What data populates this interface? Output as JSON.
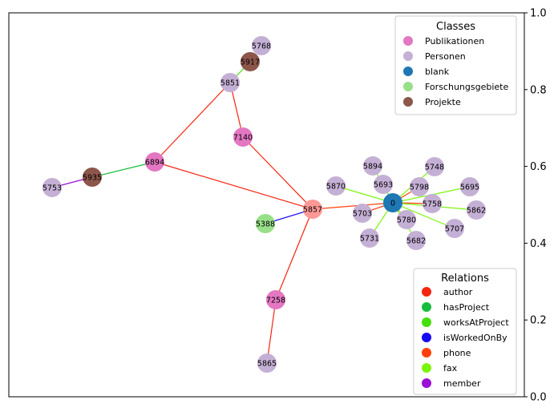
{
  "graph": {
    "nodes": [
      {
        "id": "5768",
        "label": "5768",
        "class": "Personen"
      },
      {
        "id": "5917",
        "label": "5917",
        "class": "Projekte"
      },
      {
        "id": "5851",
        "label": "5851",
        "class": "Personen"
      },
      {
        "id": "7140",
        "label": "7140",
        "class": "Publikationen"
      },
      {
        "id": "6894",
        "label": "6894",
        "class": "Publikationen"
      },
      {
        "id": "5935",
        "label": "5935",
        "class": "Projekte"
      },
      {
        "id": "5753",
        "label": "5753",
        "class": "Personen"
      },
      {
        "id": "5857",
        "label": "5857",
        "class": "hub"
      },
      {
        "id": "5388",
        "label": "5388",
        "class": "Forschungsgebiete"
      },
      {
        "id": "7258",
        "label": "7258",
        "class": "Publikationen"
      },
      {
        "id": "5865",
        "label": "5865",
        "class": "Personen"
      },
      {
        "id": "0",
        "label": "0",
        "class": "blank"
      },
      {
        "id": "5894",
        "label": "5894",
        "class": "Personen"
      },
      {
        "id": "5693",
        "label": "5693",
        "class": "Personen"
      },
      {
        "id": "5870",
        "label": "5870",
        "class": "Personen"
      },
      {
        "id": "5748",
        "label": "5748",
        "class": "Personen"
      },
      {
        "id": "5798",
        "label": "5798",
        "class": "Personen"
      },
      {
        "id": "5695",
        "label": "5695",
        "class": "Personen"
      },
      {
        "id": "5758",
        "label": "5758",
        "class": "Personen"
      },
      {
        "id": "5862",
        "label": "5862",
        "class": "Personen"
      },
      {
        "id": "5703",
        "label": "5703",
        "class": "Personen"
      },
      {
        "id": "5780",
        "label": "5780",
        "class": "Personen"
      },
      {
        "id": "5707",
        "label": "5707",
        "class": "Personen"
      },
      {
        "id": "5731",
        "label": "5731",
        "class": "Personen"
      },
      {
        "id": "5682",
        "label": "5682",
        "class": "Personen"
      }
    ],
    "edges": [
      {
        "from": "5917",
        "to": "5851",
        "relation": "worksAtProject"
      },
      {
        "from": "5851",
        "to": "7140",
        "relation": "author"
      },
      {
        "from": "5851",
        "to": "6894",
        "relation": "author"
      },
      {
        "from": "7140",
        "to": "5857",
        "relation": "author"
      },
      {
        "from": "6894",
        "to": "5857",
        "relation": "author"
      },
      {
        "from": "6894",
        "to": "5935",
        "relation": "hasProject"
      },
      {
        "from": "5935",
        "to": "5753",
        "relation": "member"
      },
      {
        "from": "5388",
        "to": "5857",
        "relation": "isWorkedOnBy"
      },
      {
        "from": "5857",
        "to": "7258",
        "relation": "author"
      },
      {
        "from": "7258",
        "to": "5865",
        "relation": "author"
      },
      {
        "from": "5857",
        "to": "0",
        "relation": "phone"
      },
      {
        "from": "0",
        "to": "5894",
        "relation": "fax"
      },
      {
        "from": "0",
        "to": "5693",
        "relation": "fax"
      },
      {
        "from": "0",
        "to": "5870",
        "relation": "fax"
      },
      {
        "from": "0",
        "to": "5748",
        "relation": "fax"
      },
      {
        "from": "0",
        "to": "5798",
        "relation": "phone"
      },
      {
        "from": "0",
        "to": "5695",
        "relation": "fax"
      },
      {
        "from": "0",
        "to": "5758",
        "relation": "phone"
      },
      {
        "from": "0",
        "to": "5862",
        "relation": "fax"
      },
      {
        "from": "0",
        "to": "5703",
        "relation": "phone"
      },
      {
        "from": "0",
        "to": "5780",
        "relation": "fax"
      },
      {
        "from": "0",
        "to": "5707",
        "relation": "fax"
      },
      {
        "from": "0",
        "to": "5731",
        "relation": "fax"
      },
      {
        "from": "0",
        "to": "5682",
        "relation": "fax"
      }
    ]
  },
  "class_colors": {
    "Publikationen": "#e377c2",
    "Personen": "#c5b0d5",
    "blank": "#1f77b4",
    "Forschungsgebiete": "#98df8a",
    "Projekte": "#8c564b",
    "hub": "#ff9896"
  },
  "relation_colors": {
    "author": "#f5260f",
    "hasProject": "#16bd3c",
    "worksAtProject": "#44e00b",
    "isWorkedOnBy": "#1709f0",
    "phone": "#ff3f0b",
    "fax": "#7cf50e",
    "member": "#9b0fd6"
  },
  "legend_classes": {
    "title": "Classes",
    "items": [
      {
        "label": "Publikationen",
        "color": "#e377c2"
      },
      {
        "label": "Personen",
        "color": "#c5b0d5"
      },
      {
        "label": "blank",
        "color": "#1f77b4"
      },
      {
        "label": "Forschungsgebiete",
        "color": "#98df8a"
      },
      {
        "label": "Projekte",
        "color": "#8c564b"
      }
    ]
  },
  "legend_relations": {
    "title": "Relations",
    "items": [
      {
        "label": "author",
        "color": "#f5260f"
      },
      {
        "label": "hasProject",
        "color": "#16bd3c"
      },
      {
        "label": "worksAtProject",
        "color": "#44e00b"
      },
      {
        "label": "isWorkedOnBy",
        "color": "#1709f0"
      },
      {
        "label": "phone",
        "color": "#ff3f0b"
      },
      {
        "label": "fax",
        "color": "#7cf50e"
      },
      {
        "label": "member",
        "color": "#9b0fd6"
      }
    ]
  },
  "right_axis": {
    "ticks": [
      {
        "value": 0.0,
        "label": "0.0"
      },
      {
        "value": 0.2,
        "label": "0.2"
      },
      {
        "value": 0.4,
        "label": "0.4"
      },
      {
        "value": 0.6,
        "label": "0.6"
      },
      {
        "value": 0.8,
        "label": "0.8"
      },
      {
        "value": 1.0,
        "label": "1.0"
      }
    ]
  }
}
